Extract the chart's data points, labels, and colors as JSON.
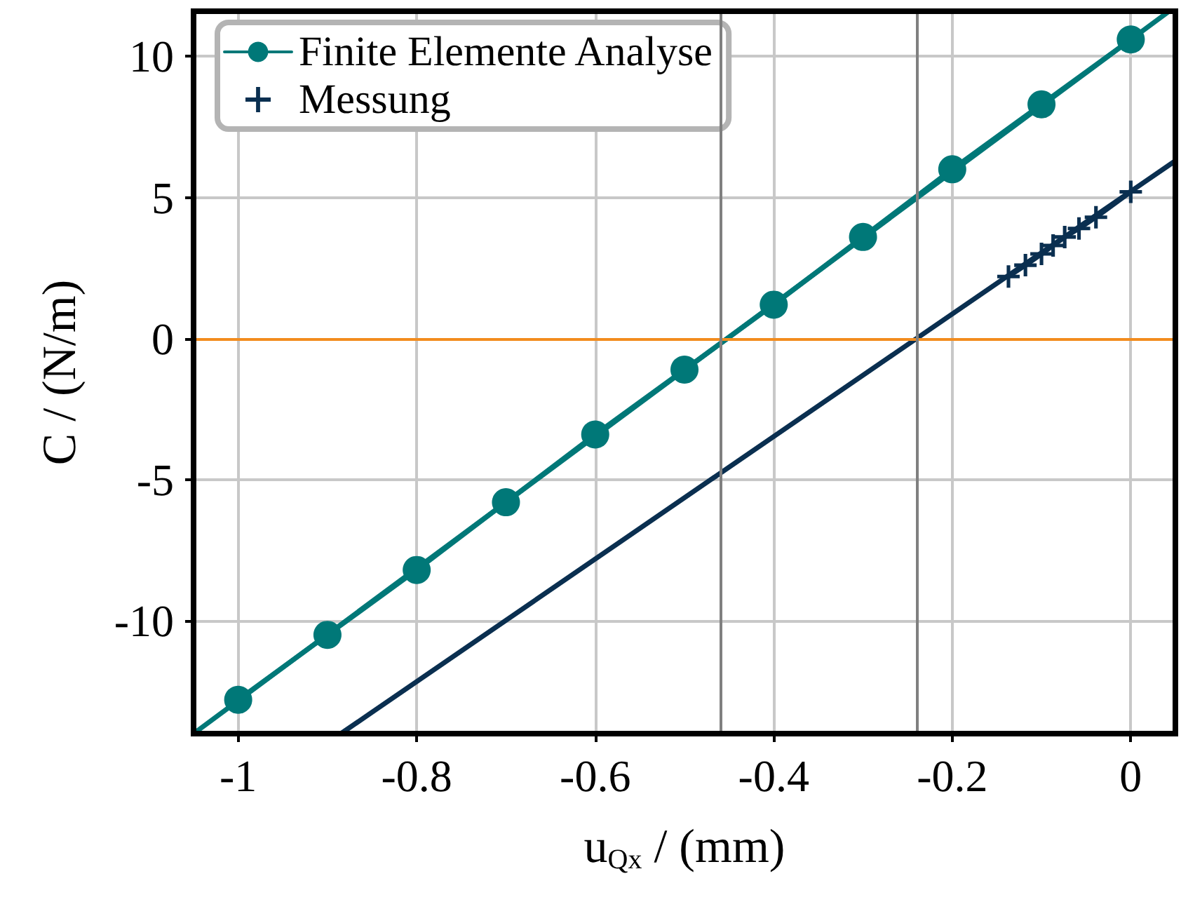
{
  "chart_data": {
    "type": "line",
    "xlabel": "u$_{Qx}$ / (mm)",
    "ylabel": "C / (N/m)",
    "xlim": [
      -1.05,
      0.05
    ],
    "ylim": [
      -14,
      11.6
    ],
    "xticks": [
      -1,
      -0.8,
      -0.6,
      -0.4,
      -0.2,
      0
    ],
    "yticks": [
      -10,
      -5,
      0,
      5,
      10
    ],
    "grid": true,
    "legend": "top left",
    "series": [
      {
        "name": "Finite Elemente Analyse",
        "color": "#007878",
        "marker": "circle",
        "x": [
          -1,
          -0.9,
          -0.8,
          -0.7,
          -0.6,
          -0.5,
          -0.4,
          -0.3,
          -0.2,
          -0.1,
          0
        ],
        "values": [
          -12.8,
          -10.5,
          -8.2,
          -5.8,
          -3.4,
          -1.1,
          1.2,
          3.6,
          6.0,
          8.3,
          10.6
        ]
      },
      {
        "name": "Messung",
        "color": "#0a2f50",
        "marker": "cross",
        "x": [
          -0.137,
          -0.118,
          -0.1,
          -0.087,
          -0.074,
          -0.058,
          -0.039,
          0
        ],
        "values": [
          2.2,
          2.6,
          3.0,
          3.3,
          3.6,
          3.9,
          4.3,
          5.2
        ]
      },
      {
        "color": "#007878",
        "marker": "none",
        "x": [
          -1.05,
          0.043
        ],
        "values": [
          -14,
          11.6
        ]
      },
      {
        "color": "#0a2f50",
        "marker": "none",
        "x": [
          -0.885,
          0.05
        ],
        "values": [
          -14,
          6.3
        ]
      }
    ],
    "ref_lines": [
      {
        "axis": "y",
        "value": 0,
        "color": "#f28c1e"
      },
      {
        "axis": "x",
        "value": -0.455,
        "color": "#808080"
      },
      {
        "axis": "x",
        "value": -0.24,
        "color": "#808080"
      }
    ]
  }
}
